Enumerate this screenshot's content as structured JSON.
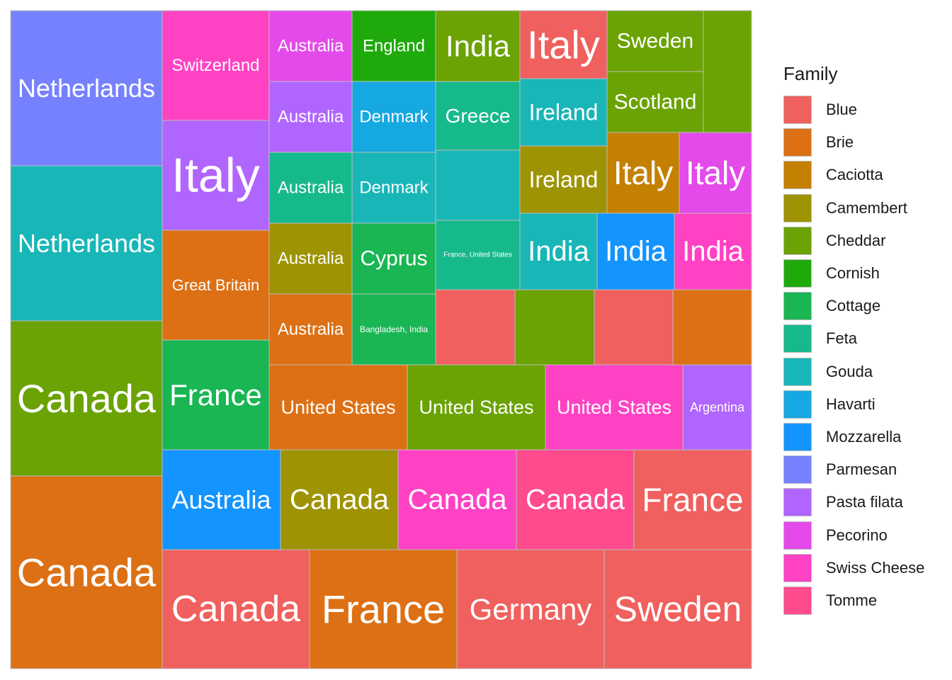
{
  "chart_data": {
    "type": "treemap",
    "legend": {
      "title": "Family",
      "items": [
        {
          "name": "Blue",
          "color": "#F0605E"
        },
        {
          "name": "Brie",
          "color": "#DD7014"
        },
        {
          "name": "Caciotta",
          "color": "#C48001"
        },
        {
          "name": "Camembert",
          "color": "#9E9302"
        },
        {
          "name": "Cheddar",
          "color": "#6AA303"
        },
        {
          "name": "Cornish",
          "color": "#1EAA0B"
        },
        {
          "name": "Cottage",
          "color": "#19B653"
        },
        {
          "name": "Feta",
          "color": "#16B98C"
        },
        {
          "name": "Gouda",
          "color": "#19B6B8"
        },
        {
          "name": "Havarti",
          "color": "#15A8E1"
        },
        {
          "name": "Mozzarella",
          "color": "#1394FF"
        },
        {
          "name": "Parmesan",
          "color": "#7681FF"
        },
        {
          "name": "Pasta filata",
          "color": "#B165FF"
        },
        {
          "name": "Pecorino",
          "color": "#E44AEA"
        },
        {
          "name": "Swiss Cheese",
          "color": "#FF42C4"
        },
        {
          "name": "Tomme",
          "color": "#FF4B8D"
        }
      ]
    },
    "tiles": [
      {
        "label": "Netherlands",
        "family": "Parmesan"
      },
      {
        "label": "Netherlands",
        "family": "Gouda"
      },
      {
        "label": "Canada",
        "family": "Cheddar"
      },
      {
        "label": "Canada",
        "family": "Brie"
      },
      {
        "label": "Switzerland",
        "family": "Swiss Cheese"
      },
      {
        "label": "Italy",
        "family": "Pasta filata"
      },
      {
        "label": "Great Britain",
        "family": "Brie"
      },
      {
        "label": "France",
        "family": "Cottage"
      },
      {
        "label": "Australia",
        "family": "Pecorino"
      },
      {
        "label": "Australia",
        "family": "Pasta filata"
      },
      {
        "label": "Australia",
        "family": "Feta"
      },
      {
        "label": "Australia",
        "family": "Camembert"
      },
      {
        "label": "Australia",
        "family": "Brie"
      },
      {
        "label": "England",
        "family": "Cornish"
      },
      {
        "label": "Denmark",
        "family": "Havarti"
      },
      {
        "label": "Denmark",
        "family": "Gouda"
      },
      {
        "label": "Cyprus",
        "family": "Cottage"
      },
      {
        "label": "Bangladesh, India",
        "family": "Cottage"
      },
      {
        "label": "India",
        "family": "Cheddar"
      },
      {
        "label": "Greece",
        "family": "Feta"
      },
      {
        "label": "",
        "family": "Gouda"
      },
      {
        "label": "France, United States",
        "family": "Feta"
      },
      {
        "label": "Italy",
        "family": "Blue"
      },
      {
        "label": "Ireland",
        "family": "Gouda"
      },
      {
        "label": "Ireland",
        "family": "Camembert"
      },
      {
        "label": "Sweden",
        "family": "Cheddar"
      },
      {
        "label": "Scotland",
        "family": "Cheddar"
      },
      {
        "label": "",
        "family": "Cheddar"
      },
      {
        "label": "Italy",
        "family": "Caciotta"
      },
      {
        "label": "Italy",
        "family": "Pecorino"
      },
      {
        "label": "India",
        "family": "Gouda"
      },
      {
        "label": "India",
        "family": "Mozzarella"
      },
      {
        "label": "India",
        "family": "Swiss Cheese"
      },
      {
        "label": "",
        "family": "Blue"
      },
      {
        "label": "",
        "family": "Cheddar"
      },
      {
        "label": "",
        "family": "Blue"
      },
      {
        "label": "",
        "family": "Brie"
      },
      {
        "label": "United States",
        "family": "Brie"
      },
      {
        "label": "United States",
        "family": "Cheddar"
      },
      {
        "label": "United States",
        "family": "Swiss Cheese"
      },
      {
        "label": "Argentina",
        "family": "Pasta filata"
      },
      {
        "label": "Australia",
        "family": "Mozzarella"
      },
      {
        "label": "Canada",
        "family": "Camembert"
      },
      {
        "label": "Canada",
        "family": "Swiss Cheese"
      },
      {
        "label": "Canada",
        "family": "Tomme"
      },
      {
        "label": "France",
        "family": "Blue"
      },
      {
        "label": "Canada",
        "family": "Blue"
      },
      {
        "label": "France",
        "family": "Brie"
      },
      {
        "label": "Germany",
        "family": "Blue"
      },
      {
        "label": "Sweden",
        "family": "Blue"
      }
    ]
  }
}
